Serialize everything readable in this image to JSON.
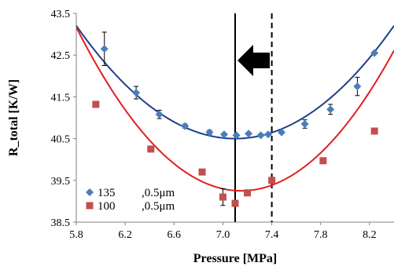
{
  "chart_data": {
    "type": "scatter",
    "xlabel": "Pressure [MPa]",
    "ylabel": "R_total [K/W]",
    "xlim": [
      5.8,
      8.4
    ],
    "ylim": [
      38.5,
      43.5
    ],
    "xticks": [
      "5.8",
      "6.2",
      "6.6",
      "7.0",
      "7.4",
      "7.8",
      "8.2"
    ],
    "yticks": [
      "38.5",
      "39.5",
      "40.5",
      "41.5",
      "42.5",
      "43.5"
    ],
    "grid": false,
    "legend": "bottom-left",
    "series": [
      {
        "name": "135",
        "label_suffix": ",0.5μm",
        "color": "#4a7ebb",
        "marker": "diamond",
        "x": [
          6.03,
          6.29,
          6.48,
          6.69,
          6.89,
          7.01,
          7.11,
          7.21,
          7.31,
          7.37,
          7.48,
          7.67,
          7.88,
          8.1,
          8.24
        ],
        "y": [
          42.65,
          41.6,
          41.08,
          40.8,
          40.65,
          40.6,
          40.58,
          40.62,
          40.58,
          40.6,
          40.65,
          40.85,
          41.2,
          41.75,
          42.55
        ],
        "err": [
          0.4,
          0.15,
          0.1,
          0.05,
          0.05,
          0.03,
          0.03,
          0.03,
          0.03,
          0.03,
          0.03,
          0.1,
          0.12,
          0.22,
          0
        ]
      },
      {
        "name": "100",
        "label_suffix": ",0.5μm",
        "color": "#c0504d",
        "marker": "square",
        "x": [
          5.96,
          6.41,
          6.83,
          7.0,
          7.1,
          7.2,
          7.4,
          7.82,
          8.24
        ],
        "y": [
          41.32,
          40.25,
          39.7,
          39.1,
          38.95,
          39.2,
          39.5,
          39.97,
          40.68
        ],
        "err": [
          0,
          0,
          0,
          0.2,
          0,
          0,
          0,
          0,
          0
        ]
      }
    ],
    "fits": [
      {
        "series": "135",
        "color": "#1f3f8a",
        "coef": [
          1.6,
          7.1,
          40.5
        ]
      },
      {
        "series": "100",
        "color": "#e02020",
        "coef": [
          2.15,
          7.15,
          39.25
        ]
      }
    ],
    "vlines": [
      {
        "x": 7.1,
        "style": "solid",
        "color": "#000000"
      },
      {
        "x": 7.4,
        "style": "dashed",
        "color": "#000000"
      }
    ],
    "arrow": {
      "direction": "left",
      "color": "#000000"
    }
  }
}
